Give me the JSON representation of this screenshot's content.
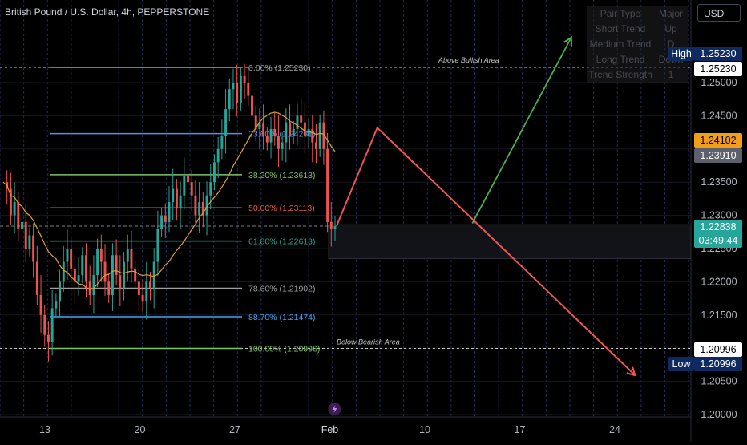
{
  "header": {
    "symbol_title": "British Pound / U.S. Dollar, 4h, PEPPERSTONE",
    "currency": "USD"
  },
  "info_table": {
    "rows": [
      {
        "key": "Pair Type",
        "value": "Major"
      },
      {
        "key": "Short Trend",
        "value": "Up"
      },
      {
        "key": "Medium Trend",
        "value": "D"
      },
      {
        "key": "Long Trend",
        "value": "Down"
      },
      {
        "key": "Trend Strength",
        "value": "1"
      }
    ]
  },
  "price_tags": {
    "high_label": "High",
    "high_value": "1.25230",
    "ref_upper": "1.25230",
    "current_orange": "1.24102",
    "current_gray": "1.23910",
    "last_price": "1.22838",
    "countdown": "03:49:44",
    "ref_lower": "1.20996",
    "low_label": "Low",
    "low_value": "1.20996"
  },
  "colors": {
    "background": "#000000",
    "grid": "#1c2030",
    "bull_candle": "#26a69a",
    "bear_candle": "#ef5350",
    "ma_line": "#e0a030",
    "up_arrow": "#4caf50",
    "down_arrow": "#f05454",
    "tag_green": "#26a69a",
    "tag_orange": "#f29d1c",
    "tag_gray": "#5d606b",
    "tag_dark_blue": "#0f2a60"
  },
  "annotations": {
    "above": "Above Bullish Area",
    "below": "Below Bearish Area"
  },
  "chart_data": {
    "type": "candlestick",
    "title": "British Pound / U.S. Dollar, 4h, PEPPERSTONE",
    "ylim": [
      1.1995,
      1.2605
    ],
    "y_ticks": [
      "1.25000",
      "1.24500",
      "1.24000",
      "1.23500",
      "1.23000",
      "1.22500",
      "1.22000",
      "1.21500",
      "1.21000",
      "1.20500",
      "1.20000"
    ],
    "x_ticks": [
      "13",
      "20",
      "27",
      "Feb",
      "10",
      "17",
      "24"
    ],
    "fibonacci": [
      {
        "label": "0.00% (1.25230)",
        "price": 1.2523,
        "color": "#a0a0a0"
      },
      {
        "label": "23.60% (1.24231)",
        "price": 1.24231,
        "color": "#5b8de8"
      },
      {
        "label": "38.20% (1.23613)",
        "price": 1.23613,
        "color": "#7cc36a"
      },
      {
        "label": "50.00% (1.23113)",
        "price": 1.23113,
        "color": "#ef5350"
      },
      {
        "label": "61.80% (1.22613)",
        "price": 1.22613,
        "color": "#26a69a"
      },
      {
        "label": "78.60% (1.21902)",
        "price": 1.21902,
        "color": "#9e9e9e"
      },
      {
        "label": "88.70% (1.21474)",
        "price": 1.21474,
        "color": "#42a5f5"
      },
      {
        "label": "100.00% (1.20996)",
        "price": 1.20996,
        "color": "#7cc36a"
      }
    ],
    "key_levels": {
      "high": 1.2523,
      "low": 1.20996,
      "last": 1.22838
    },
    "candle_path": [
      1.235,
      1.234,
      1.23,
      1.232,
      1.228,
      1.229,
      1.225,
      1.227,
      1.223,
      1.218,
      1.215,
      1.212,
      1.211,
      1.216,
      1.217,
      1.22,
      1.223,
      1.225,
      1.222,
      1.22,
      1.221,
      1.224,
      1.22,
      1.218,
      1.221,
      1.225,
      1.223,
      1.22,
      1.218,
      1.224,
      1.221,
      1.219,
      1.223,
      1.225,
      1.222,
      1.22,
      1.218,
      1.217,
      1.22,
      1.219,
      1.223,
      1.228,
      1.23,
      1.229,
      1.232,
      1.234,
      1.231,
      1.233,
      1.236,
      1.235,
      1.233,
      1.23,
      1.232,
      1.23,
      1.233,
      1.235,
      1.238,
      1.24,
      1.242,
      1.246,
      1.249,
      1.25,
      1.247,
      1.251,
      1.25,
      1.248,
      1.245,
      1.243,
      1.244,
      1.242,
      1.241,
      1.243,
      1.242,
      1.24,
      1.241,
      1.244,
      1.242,
      1.243,
      1.245,
      1.244,
      1.242,
      1.243,
      1.241,
      1.24,
      1.244,
      1.24,
      1.229,
      1.228,
      1.2284
    ],
    "projection_red": [
      {
        "x_label": "Feb",
        "offset_days": 0.5,
        "price": 1.2284
      },
      {
        "x_label": "Feb",
        "offset_days": 3.5,
        "price": 1.2432
      },
      {
        "x_label": "24",
        "offset_days": 1.5,
        "price": 1.2059
      }
    ],
    "projection_green": [
      {
        "x_label": "10",
        "offset_days": 3.5,
        "price": 1.2288
      },
      {
        "x_label": "17",
        "offset_days": 3.8,
        "price": 1.2568
      }
    ]
  }
}
